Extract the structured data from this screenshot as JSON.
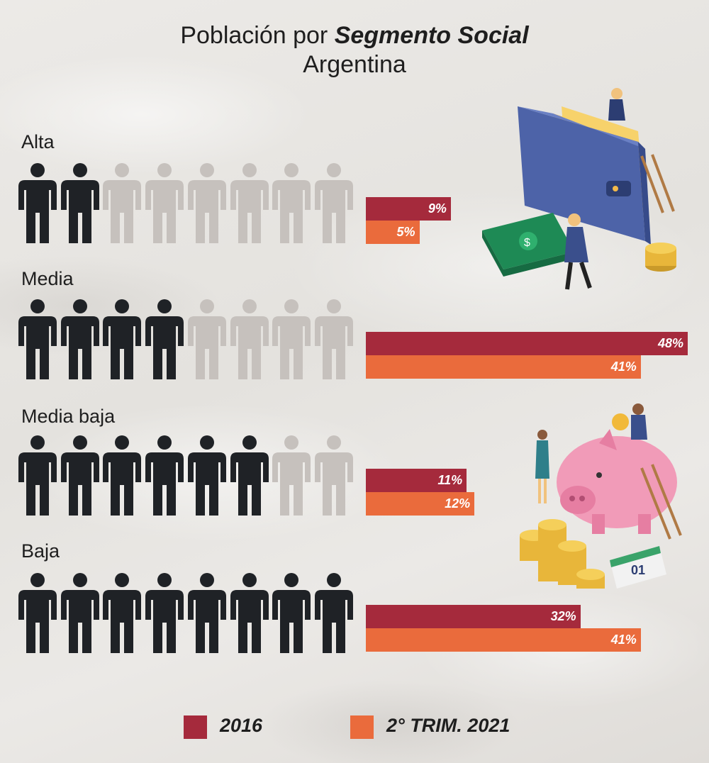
{
  "title": {
    "prefix": "Población por ",
    "bold": "Segmento Social",
    "subtitle": "Argentina"
  },
  "colors": {
    "s2016": "#a52a3c",
    "s2021": "#ea6b3c",
    "person_filled": "#1f2226",
    "person_empty": "#c6c1bd"
  },
  "legend": {
    "s2016": "2016",
    "s2021": "2° TRIM. 2021"
  },
  "chart_data": {
    "type": "bar",
    "orientation": "horizontal",
    "title": "Población por Segmento Social Argentina",
    "categories": [
      "Alta",
      "Media",
      "Media baja",
      "Baja"
    ],
    "series": [
      {
        "name": "2016",
        "values": [
          9,
          48,
          11,
          32
        ],
        "labels": [
          "9%",
          "48%",
          "11%",
          "32%"
        ]
      },
      {
        "name": "2° TRIM. 2021",
        "values": [
          5,
          41,
          12,
          41
        ],
        "labels": [
          "5%",
          "41%",
          "12%",
          "41%"
        ]
      }
    ],
    "pictogram_filled_of_8": [
      2,
      4,
      6,
      8
    ],
    "legend_position": "bottom"
  },
  "illustrations": [
    "wallet-money-illustration",
    "piggy-bank-coins-illustration"
  ]
}
